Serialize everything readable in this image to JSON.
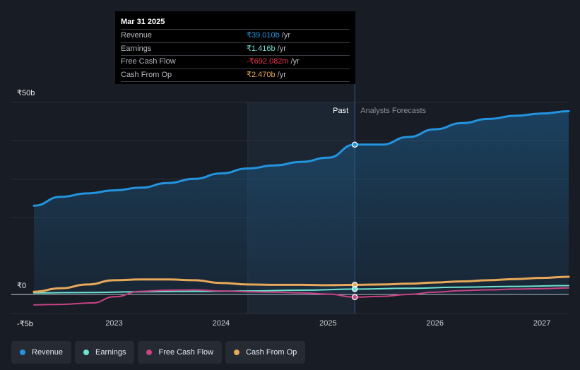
{
  "tooltip": {
    "date": "Mar 31 2025",
    "rows": [
      {
        "label": "Revenue",
        "value": "₹39.010b",
        "unit": "/yr",
        "color": "#2394df"
      },
      {
        "label": "Earnings",
        "value": "₹1.416b",
        "unit": "/yr",
        "color": "#6fe3d2"
      },
      {
        "label": "Free Cash Flow",
        "value": "-₹692.082m",
        "unit": "/yr",
        "color": "#e8334e"
      },
      {
        "label": "Cash From Op",
        "value": "₹2.470b",
        "unit": "/yr",
        "color": "#e8a85a"
      }
    ]
  },
  "legend": [
    {
      "label": "Revenue",
      "color": "#2394df"
    },
    {
      "label": "Earnings",
      "color": "#6fe3d2"
    },
    {
      "label": "Free Cash Flow",
      "color": "#c74383"
    },
    {
      "label": "Cash From Op",
      "color": "#e8a85a"
    }
  ],
  "chart_data": {
    "type": "line",
    "title": "",
    "y_unit": "₹b",
    "ylim": [
      -5,
      50
    ],
    "xlim": [
      2022.25,
      2027.25
    ],
    "ytick_labels": [
      "₹50b",
      "₹0",
      "-₹5b"
    ],
    "ytick_values": [
      50,
      0,
      -5
    ],
    "xtick_labels": [
      "2023",
      "2024",
      "2025",
      "2026",
      "2027"
    ],
    "xtick_values": [
      2023,
      2024,
      2025,
      2026,
      2027
    ],
    "past_label": "Past",
    "forecast_label": "Analysts Forecasts",
    "past_start": 2024.25,
    "divider": 2025.25,
    "series": [
      {
        "name": "Revenue",
        "color": "#2394df",
        "width": 3,
        "x": [
          2022.25,
          2022.5,
          2022.75,
          2023.0,
          2023.25,
          2023.5,
          2023.75,
          2024.0,
          2024.25,
          2024.5,
          2024.75,
          2025.0,
          2025.25,
          2025.5,
          2025.75,
          2026.0,
          2026.25,
          2026.5,
          2026.75,
          2027.0,
          2027.25
        ],
        "y": [
          23.1,
          25.4,
          26.3,
          27.1,
          27.8,
          29.0,
          30.1,
          31.5,
          32.8,
          33.6,
          34.5,
          35.6,
          39.0,
          39.0,
          41.0,
          43.0,
          44.6,
          45.7,
          46.5,
          47.1,
          47.7
        ]
      },
      {
        "name": "Earnings",
        "color": "#6fe3d2",
        "width": 2,
        "x": [
          2022.25,
          2022.75,
          2023.25,
          2023.75,
          2024.25,
          2024.75,
          2025.25,
          2025.75,
          2026.25,
          2026.75,
          2027.25
        ],
        "y": [
          0.4,
          0.5,
          0.7,
          0.8,
          0.9,
          1.1,
          1.4,
          1.6,
          1.9,
          2.1,
          2.3
        ]
      },
      {
        "name": "Free Cash Flow",
        "color": "#c74383",
        "width": 2,
        "x": [
          2022.25,
          2022.5,
          2022.8,
          2023.0,
          2023.25,
          2023.5,
          2023.75,
          2024.0,
          2024.25,
          2024.5,
          2024.75,
          2025.0,
          2025.25,
          2025.5,
          2025.75,
          2026.0,
          2026.25,
          2026.5,
          2026.75,
          2027.0,
          2027.25
        ],
        "y": [
          -2.7,
          -2.6,
          -2.2,
          -0.6,
          0.8,
          1.1,
          1.2,
          0.9,
          0.7,
          0.6,
          0.4,
          0.1,
          -0.7,
          -0.5,
          0.0,
          0.6,
          1.0,
          1.2,
          1.4,
          1.5,
          1.7
        ]
      },
      {
        "name": "Cash From Op",
        "color": "#e8a85a",
        "width": 3,
        "x": [
          2022.25,
          2022.5,
          2022.75,
          2023.0,
          2023.25,
          2023.5,
          2023.75,
          2024.0,
          2024.25,
          2024.5,
          2024.75,
          2025.0,
          2025.25,
          2025.5,
          2025.75,
          2026.0,
          2026.25,
          2026.5,
          2026.75,
          2027.0,
          2027.25
        ],
        "y": [
          0.7,
          1.6,
          2.6,
          3.7,
          3.9,
          3.9,
          3.7,
          3.0,
          2.6,
          2.5,
          2.5,
          2.4,
          2.5,
          2.6,
          2.8,
          3.1,
          3.4,
          3.7,
          4.0,
          4.3,
          4.6
        ]
      }
    ],
    "tooltip_markers": [
      {
        "series": "Revenue",
        "x": 2025.25,
        "y": 39.0
      },
      {
        "series": "Cash From Op",
        "x": 2025.25,
        "y": 2.5
      },
      {
        "series": "Earnings",
        "x": 2025.25,
        "y": 1.4
      },
      {
        "series": "Free Cash Flow",
        "x": 2025.25,
        "y": -0.7
      }
    ]
  }
}
